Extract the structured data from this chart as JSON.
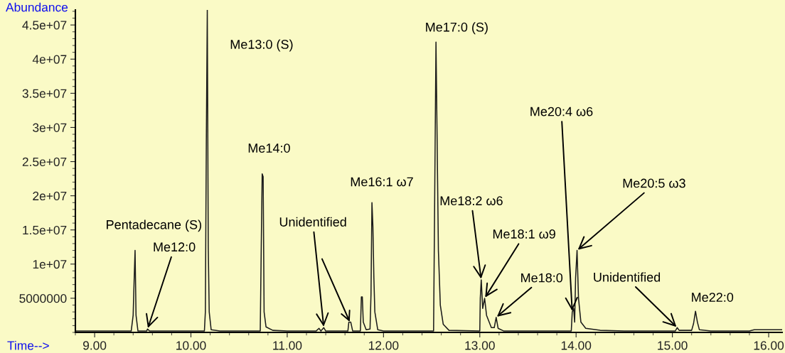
{
  "chart_data": {
    "type": "line",
    "xlabel": "Time-->",
    "ylabel": "Abundance",
    "xlim": [
      8.8,
      16.14
    ],
    "ylim": [
      0,
      47200000
    ],
    "xticks": [
      {
        "value": 9,
        "label": "9.00"
      },
      {
        "value": 10,
        "label": "10.00"
      },
      {
        "value": 11,
        "label": "11.00"
      },
      {
        "value": 12,
        "label": "12.00"
      },
      {
        "value": 13,
        "label": "13.00"
      },
      {
        "value": 14,
        "label": "14.00"
      },
      {
        "value": 15,
        "label": "15.00"
      },
      {
        "value": 16,
        "label": "16.00"
      }
    ],
    "yticks": [
      5000000,
      {
        "value": 10000000,
        "label": "1e+07"
      },
      {
        "value": 15000000,
        "label": "1.5e+07"
      },
      {
        "value": 20000000,
        "label": "2e+07"
      },
      {
        "value": 25000000,
        "label": "2.5e+07"
      },
      {
        "value": 30000000,
        "label": "3e+07"
      },
      {
        "value": 35000000,
        "label": "3.5e+07"
      },
      {
        "value": 40000000,
        "label": "4e+07"
      },
      {
        "value": 45000000,
        "label": "4.5e+07"
      }
    ],
    "marker": "none",
    "line_style": "solid",
    "series": [
      {
        "color": "#1a1a1a",
        "x": [
          8.8,
          9.38,
          9.4,
          9.41,
          9.42,
          9.43,
          9.45,
          9.54,
          9.55,
          9.57,
          10.14,
          10.15,
          10.16,
          10.17,
          10.18,
          10.19,
          10.21,
          10.3,
          10.72,
          10.73,
          10.74,
          10.75,
          10.76,
          10.78,
          10.85,
          11.0,
          11.3,
          11.33,
          11.35,
          11.38,
          11.4,
          11.63,
          11.64,
          11.66,
          11.68,
          11.76,
          11.77,
          11.78,
          11.79,
          11.82,
          11.86,
          11.87,
          11.88,
          11.89,
          11.9,
          11.91,
          11.94,
          12.0,
          12.52,
          12.53,
          12.545,
          12.555,
          12.57,
          12.59,
          12.62,
          12.68,
          13.0,
          13.005,
          13.015,
          13.03,
          13.05,
          13.07,
          13.12,
          13.15,
          13.17,
          13.19,
          13.25,
          13.95,
          13.96,
          13.975,
          13.985,
          13.995,
          14.01,
          14.025,
          14.05,
          14.1,
          14.25,
          14.5,
          15.03,
          15.05,
          15.07,
          15.2,
          15.22,
          15.24,
          15.26,
          15.28,
          15.4,
          15.8,
          15.85,
          16.14
        ],
        "values": [
          200000,
          200000,
          2500000,
          7500000,
          12000000,
          2500000,
          200000,
          200000,
          500000,
          200000,
          200000,
          3000000,
          28000000,
          47200000,
          12500000,
          3000000,
          400000,
          200000,
          200000,
          12000000,
          23200000,
          22800000,
          3000000,
          800000,
          300000,
          200000,
          200000,
          600000,
          200000,
          700000,
          200000,
          200000,
          1500000,
          1500000,
          200000,
          200000,
          5200000,
          5200000,
          1500000,
          400000,
          500000,
          5500000,
          19000000,
          15500000,
          8000000,
          3000000,
          400000,
          200000,
          200000,
          17000000,
          42500000,
          30500000,
          12000000,
          4000000,
          1200000,
          300000,
          200000,
          5000000,
          7700000,
          3500000,
          5000000,
          2500000,
          700000,
          700000,
          2200000,
          600000,
          200000,
          200000,
          3000000,
          3500000,
          1500000,
          8000000,
          12000000,
          5000000,
          1500000,
          600000,
          300000,
          200000,
          200000,
          700000,
          300000,
          300000,
          1300000,
          3100000,
          1500000,
          400000,
          200000,
          200000,
          400000,
          400000
        ]
      }
    ],
    "annotations": [
      {
        "text": "Pentadecane (S)",
        "x": 9.42,
        "y": 12000000
      },
      {
        "text": "Me12:0",
        "x": 9.55,
        "y": 500000
      },
      {
        "text": "Me13:0 (S)",
        "x": 10.17,
        "y": 47200000
      },
      {
        "text": "Me14:0",
        "x": 10.74,
        "y": 23200000
      },
      {
        "text": "Unidentified",
        "x": 11.38,
        "y": 700000
      },
      {
        "text": "Me16:1 ω7",
        "x": 11.88,
        "y": 19000000
      },
      {
        "text": "Me17:0 (S)",
        "x": 12.545,
        "y": 42500000
      },
      {
        "text": "Me18:2 ω6",
        "x": 13.015,
        "y": 7700000
      },
      {
        "text": "Me18:1 ω9",
        "x": 13.05,
        "y": 5000000
      },
      {
        "text": "Me18:0",
        "x": 13.17,
        "y": 2200000
      },
      {
        "text": "Me20:4 ω6",
        "x": 13.96,
        "y": 3000000
      },
      {
        "text": "Me20:5 ω3",
        "x": 14.01,
        "y": 12000000
      },
      {
        "text": "Unidentified",
        "x": 15.05,
        "y": 700000
      },
      {
        "text": "Me22:0",
        "x": 15.24,
        "y": 3100000
      }
    ]
  }
}
